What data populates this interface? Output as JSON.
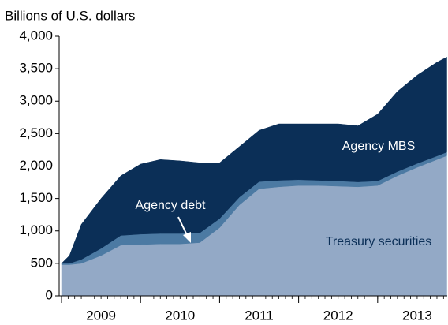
{
  "chart_data": {
    "type": "stacked_area",
    "y_label": "Billions of U.S. dollars",
    "x": [
      2009.0,
      2009.1,
      2009.25,
      2009.5,
      2009.75,
      2010.0,
      2010.25,
      2010.5,
      2010.75,
      2011.0,
      2011.25,
      2011.5,
      2011.75,
      2012.0,
      2012.25,
      2012.5,
      2012.75,
      2013.0,
      2013.25,
      2013.5,
      2013.75,
      2013.875
    ],
    "series": [
      {
        "name": "Treasury securities",
        "color": "#93a9c6",
        "values": [
          480,
          480,
          500,
          620,
          780,
          790,
          800,
          800,
          820,
          1050,
          1400,
          1650,
          1680,
          1700,
          1700,
          1690,
          1680,
          1700,
          1850,
          1980,
          2100,
          2160
        ]
      },
      {
        "name": "Agency debt",
        "color": "#4c7aa3",
        "values": [
          20,
          20,
          60,
          110,
          150,
          160,
          160,
          160,
          150,
          140,
          120,
          110,
          100,
          90,
          80,
          80,
          75,
          70,
          65,
          60,
          55,
          55
        ]
      },
      {
        "name": "Agency MBS",
        "color": "#0b2f57",
        "values": [
          0,
          120,
          540,
          770,
          920,
          1080,
          1140,
          1120,
          1080,
          860,
          780,
          790,
          870,
          860,
          870,
          880,
          865,
          1030,
          1235,
          1360,
          1445,
          1465
        ]
      }
    ],
    "xlim": [
      2008.97,
      2013.88
    ],
    "xticks": [
      2009,
      2010,
      2011,
      2012,
      2013
    ],
    "ylim": [
      0,
      4000
    ],
    "yticks": [
      0,
      {
        "value": 500,
        "label": "500"
      },
      {
        "value": 1000,
        "label": "1,000"
      },
      {
        "value": 1500,
        "label": "1,500"
      },
      {
        "value": 2000,
        "label": "2,000"
      },
      {
        "value": 2500,
        "label": "2,500"
      },
      {
        "value": 3000,
        "label": "3,000"
      },
      {
        "value": 3500,
        "label": "3,500"
      },
      {
        "value": 4000,
        "label": "4,000"
      }
    ],
    "annotations": [
      "Agency MBS",
      "Agency debt",
      "Treasury securities"
    ]
  }
}
